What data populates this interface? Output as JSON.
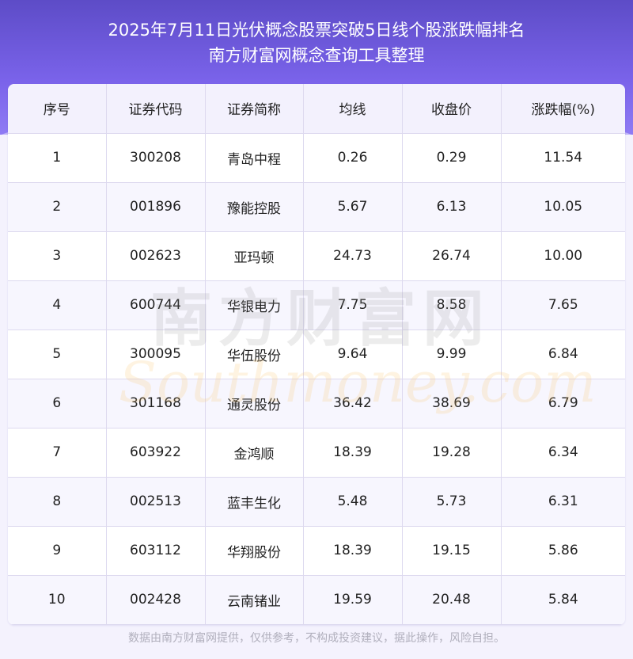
{
  "header": {
    "title_line1": "2025年7月11日光伏概念股票突破5日线个股涨跌幅排名",
    "title_line2": "南方财富网概念查询工具整理"
  },
  "table": {
    "columns": [
      "序号",
      "证券代码",
      "证券简称",
      "均线",
      "收盘价",
      "涨跌幅(%)"
    ],
    "rows": [
      [
        "1",
        "300208",
        "青岛中程",
        "0.26",
        "0.29",
        "11.54"
      ],
      [
        "2",
        "001896",
        "豫能控股",
        "5.67",
        "6.13",
        "10.05"
      ],
      [
        "3",
        "002623",
        "亚玛顿",
        "24.73",
        "26.74",
        "10.00"
      ],
      [
        "4",
        "600744",
        "华银电力",
        "7.75",
        "8.58",
        "7.65"
      ],
      [
        "5",
        "300095",
        "华伍股份",
        "9.64",
        "9.99",
        "6.84"
      ],
      [
        "6",
        "301168",
        "通灵股份",
        "36.42",
        "38.69",
        "6.79"
      ],
      [
        "7",
        "603922",
        "金鸿顺",
        "18.39",
        "19.28",
        "6.34"
      ],
      [
        "8",
        "002513",
        "蓝丰生化",
        "5.48",
        "5.73",
        "6.31"
      ],
      [
        "9",
        "603112",
        "华翔股份",
        "18.39",
        "19.15",
        "5.86"
      ],
      [
        "10",
        "002428",
        "云南锗业",
        "19.59",
        "20.48",
        "5.84"
      ]
    ]
  },
  "watermark": {
    "cn": "南方财富网",
    "en": "Southmoney.com"
  },
  "footer": {
    "disclaimer": "数据由南方财富网提供，仅供参考，不构成投资建议，据此操作，风险自担。"
  },
  "colors": {
    "header_bg": "#6a56dc",
    "accent": "#7a63ea"
  }
}
